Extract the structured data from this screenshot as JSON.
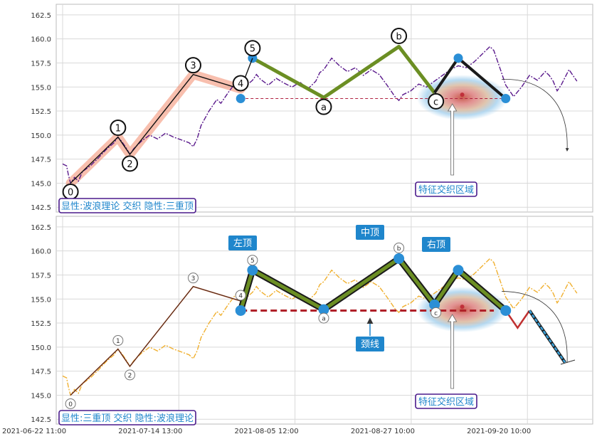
{
  "chart_data": {
    "type": "line",
    "x_ticks": [
      "2021-06-22 11:00",
      "2021-07-14 13:00",
      "2021-08-05 12:00",
      "2021-08-27 10:00",
      "2021-09-20 10:00"
    ],
    "y_ticks": [
      "142.5",
      "145.0",
      "147.5",
      "150.0",
      "152.5",
      "155.0",
      "157.5",
      "160.0",
      "162.5"
    ],
    "ylim": [
      142.0,
      163.6
    ],
    "grid": true,
    "price_series": [
      [
        0,
        147.0
      ],
      [
        2,
        146.8
      ],
      [
        3,
        145.8
      ],
      [
        4,
        145.0
      ],
      [
        6,
        145.6
      ],
      [
        8,
        145.2
      ],
      [
        10,
        146.2
      ],
      [
        14,
        146.8
      ],
      [
        18,
        147.6
      ],
      [
        22,
        148.5
      ],
      [
        26,
        149.2
      ],
      [
        28,
        149.8
      ],
      [
        30,
        149.3
      ],
      [
        32,
        148.7
      ],
      [
        34,
        148.0
      ],
      [
        36,
        148.6
      ],
      [
        40,
        149.4
      ],
      [
        44,
        150.0
      ],
      [
        48,
        149.6
      ],
      [
        52,
        150.2
      ],
      [
        56,
        149.8
      ],
      [
        60,
        149.5
      ],
      [
        64,
        149.2
      ],
      [
        66,
        148.8
      ],
      [
        68,
        149.6
      ],
      [
        70,
        151.0
      ],
      [
        74,
        152.5
      ],
      [
        78,
        153.7
      ],
      [
        80,
        153.3
      ],
      [
        84,
        154.5
      ],
      [
        88,
        155.6
      ],
      [
        92,
        155.0
      ],
      [
        96,
        155.7
      ],
      [
        98,
        156.3
      ],
      [
        100,
        155.8
      ],
      [
        104,
        155.2
      ],
      [
        108,
        155.9
      ],
      [
        112,
        155.4
      ],
      [
        116,
        155.0
      ],
      [
        120,
        155.5
      ],
      [
        124,
        154.8
      ],
      [
        128,
        155.6
      ],
      [
        130,
        156.5
      ],
      [
        132,
        156.8
      ],
      [
        134,
        157.4
      ],
      [
        136,
        158.0
      ],
      [
        138,
        157.6
      ],
      [
        140,
        157.2
      ],
      [
        144,
        156.6
      ],
      [
        148,
        157.0
      ],
      [
        152,
        156.2
      ],
      [
        156,
        156.8
      ],
      [
        160,
        156.3
      ],
      [
        164,
        155.2
      ],
      [
        168,
        154.0
      ],
      [
        170,
        153.6
      ],
      [
        172,
        154.2
      ],
      [
        176,
        154.6
      ],
      [
        180,
        155.3
      ],
      [
        184,
        155.0
      ],
      [
        188,
        155.6
      ],
      [
        192,
        156.2
      ],
      [
        196,
        156.8
      ],
      [
        200,
        157.2
      ],
      [
        204,
        157.0
      ],
      [
        208,
        157.6
      ],
      [
        212,
        158.4
      ],
      [
        216,
        159.2
      ],
      [
        218,
        158.8
      ],
      [
        220,
        157.6
      ],
      [
        222,
        156.4
      ],
      [
        224,
        155.2
      ],
      [
        226,
        154.6
      ],
      [
        228,
        154.0
      ],
      [
        232,
        155.0
      ],
      [
        236,
        156.2
      ],
      [
        240,
        155.7
      ],
      [
        244,
        156.6
      ],
      [
        246,
        156.2
      ],
      [
        248,
        155.6
      ],
      [
        250,
        154.6
      ],
      [
        252,
        155.2
      ],
      [
        254,
        156.0
      ],
      [
        256,
        156.8
      ],
      [
        258,
        156.2
      ],
      [
        260,
        155.6
      ]
    ],
    "wave_points": [
      {
        "label": "0",
        "x": 4,
        "y": 145.0
      },
      {
        "label": "1",
        "x": 28,
        "y": 149.8
      },
      {
        "label": "2",
        "x": 34,
        "y": 148.0
      },
      {
        "label": "3",
        "x": 66,
        "y": 156.3
      },
      {
        "label": "4",
        "x": 90,
        "y": 154.8
      },
      {
        "label": "5",
        "x": 96,
        "y": 158.0
      },
      {
        "label": "a",
        "x": 132,
        "y": 153.9
      },
      {
        "label": "b",
        "x": 170,
        "y": 159.2
      },
      {
        "label": "c",
        "x": 188,
        "y": 154.4
      }
    ],
    "triple_top": {
      "points": [
        [
          90,
          153.8
        ],
        [
          96,
          158.0
        ],
        [
          132,
          153.9
        ],
        [
          170,
          159.2
        ],
        [
          188,
          154.4
        ],
        [
          200,
          158.0
        ],
        [
          224,
          153.8
        ]
      ],
      "neckline": 153.8,
      "projection": [
        [
          224,
          153.8
        ],
        [
          230,
          152.0
        ],
        [
          236,
          153.8
        ],
        [
          254,
          148.4
        ]
      ]
    },
    "top_panel": {
      "caption": "显性:波浪理论 交织 隐性:三重顶",
      "zone_label": "特征交织区域"
    },
    "bottom_panel": {
      "caption": "显性:三重顶 交织 隐性:波浪理论",
      "zone_label": "特征交织区域",
      "left_top_label": "左顶",
      "middle_top_label": "中顶",
      "right_top_label": "右顶",
      "neckline_label": "颈线"
    },
    "colors": {
      "price_top": "#5a1a8c",
      "price_bottom": "#f0b030",
      "pattern_line": "#6b8e23",
      "pattern_outline": "#1a1a1a",
      "marker": "#2b8fd6",
      "wave_band": "#f28b6b",
      "neckline_top": "#b02040",
      "neckline_bottom": "#b02028",
      "label_box": "#1f86cc",
      "caption_border": "#4a1a8c",
      "projection": "#3aa0d8"
    }
  }
}
